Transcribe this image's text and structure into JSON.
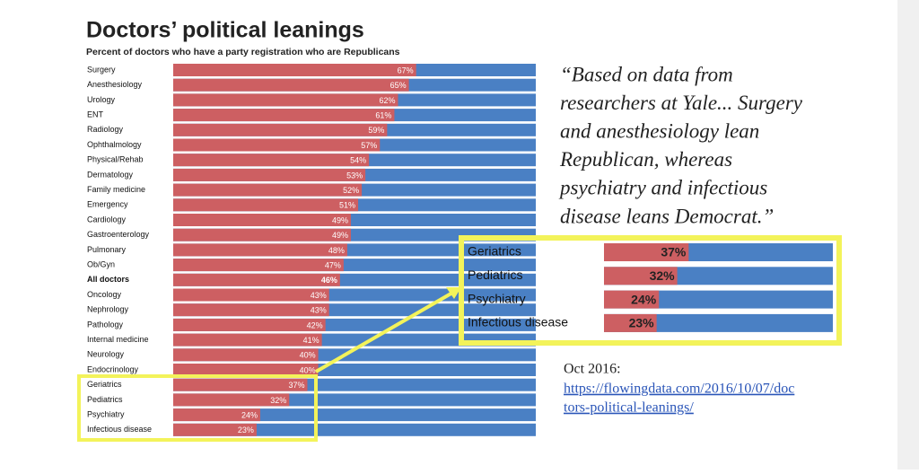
{
  "chart_data": [
    {
      "type": "bar",
      "orientation": "horizontal",
      "title": "Doctors’ political leanings",
      "subtitle": "Percent of doctors who have a party registration who are Republicans",
      "categories": [
        "Surgery",
        "Anesthesiology",
        "Urology",
        "ENT",
        "Radiology",
        "Ophthalmology",
        "Physical/Rehab",
        "Dermatology",
        "Family medicine",
        "Emergency",
        "Cardiology",
        "Gastroenterology",
        "Pulmonary",
        "Ob/Gyn",
        "All doctors",
        "Oncology",
        "Nephrology",
        "Pathology",
        "Internal medicine",
        "Neurology",
        "Endocrinology",
        "Geriatrics",
        "Pediatrics",
        "Psychiatry",
        "Infectious disease"
      ],
      "values": [
        67,
        65,
        62,
        61,
        59,
        57,
        54,
        53,
        52,
        51,
        49,
        49,
        48,
        47,
        46,
        43,
        43,
        42,
        41,
        40,
        40,
        37,
        32,
        24,
        23
      ],
      "value_labels": [
        "67%",
        "65%",
        "62%",
        "61%",
        "59%",
        "57%",
        "54%",
        "53%",
        "52%",
        "51%",
        "49%",
        "49%",
        "48%",
        "47%",
        "46%",
        "43%",
        "43%",
        "42%",
        "41%",
        "40%",
        "40%",
        "37%",
        "32%",
        "24%",
        "23%"
      ],
      "highlight_index": 14,
      "color": "#cd5f62",
      "rest_color": "#4a80c4",
      "xlim": [
        0,
        100
      ]
    },
    {
      "type": "bar",
      "orientation": "horizontal",
      "categories": [
        "Geriatrics",
        "Pediatrics",
        "Psychiatry",
        "Infectious disease"
      ],
      "values": [
        37,
        32,
        24,
        23
      ],
      "value_labels": [
        "37%",
        "32%",
        "24%",
        "23%"
      ],
      "color": "#cd5f62",
      "rest_color": "#4a80c4",
      "xlim": [
        0,
        100
      ]
    }
  ],
  "quote": [
    "“Based on data from",
    "researchers at Yale... Surgery",
    "and anesthesiology lean",
    "Republican, whereas",
    "psychiatry and infectious",
    "disease leans Democrat.”"
  ],
  "date": "Oct 2016:",
  "link": [
    "https://flowingdata.com/2016/10/07/doc",
    "tors-political-leanings/"
  ]
}
